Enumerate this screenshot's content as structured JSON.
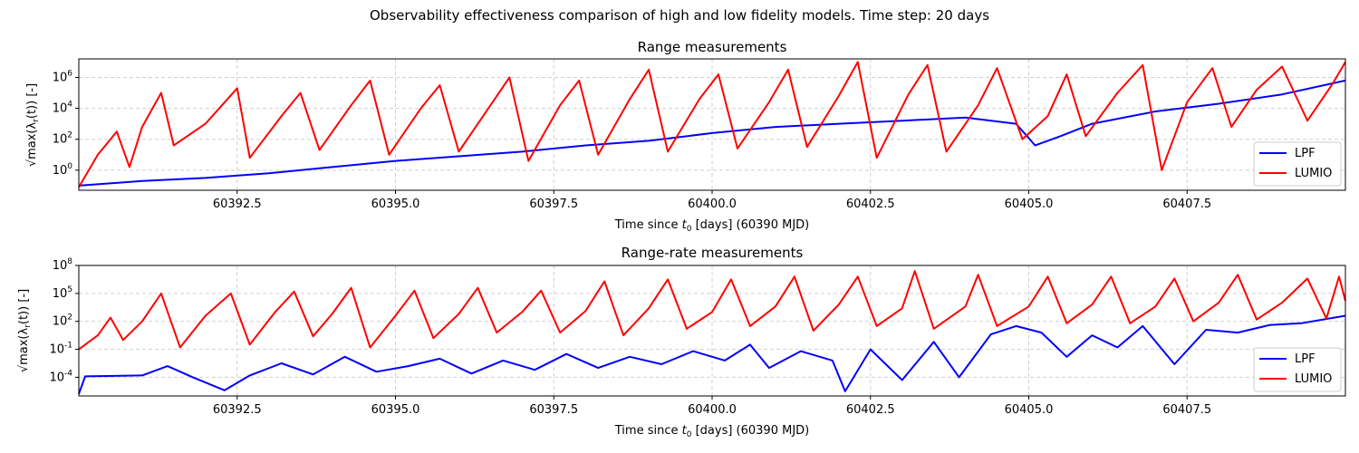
{
  "figure": {
    "suptitle": "Observability effectiveness comparison of high and low fidelity models. Time step: 20 days"
  },
  "chart_data": [
    {
      "type": "line",
      "title": "Range measurements",
      "xlabel": "Time since t0 [days] (60390 MJD)",
      "ylabel": "√max(λr(t)) [-]",
      "yscale": "log",
      "xlim": [
        60390.0,
        60410.0
      ],
      "ylim_log10": [
        -1.3,
        7.2
      ],
      "xticks": [
        60392.5,
        60395.0,
        60397.5,
        60400.0,
        60402.5,
        60405.0,
        60407.5
      ],
      "xtick_labels": [
        "60392.5",
        "60395.0",
        "60397.5",
        "60400.0",
        "60402.5",
        "60405.0",
        "60407.5"
      ],
      "yticks_log10": [
        0,
        2,
        4,
        6
      ],
      "ytick_labels": [
        "10^0",
        "10^2",
        "10^4",
        "10^6"
      ],
      "grid": true,
      "legend_position": "lower-right",
      "series": [
        {
          "name": "LPF",
          "color": "#0000ff",
          "log10_points": [
            [
              60390.0,
              -1.0
            ],
            [
              60391.0,
              -0.7
            ],
            [
              60392.0,
              -0.5
            ],
            [
              60393.0,
              -0.2
            ],
            [
              60394.0,
              0.2
            ],
            [
              60395.0,
              0.6
            ],
            [
              60396.0,
              0.9
            ],
            [
              60397.0,
              1.2
            ],
            [
              60398.0,
              1.6
            ],
            [
              60399.0,
              1.9
            ],
            [
              60400.0,
              2.4
            ],
            [
              60401.0,
              2.8
            ],
            [
              60402.0,
              3.0
            ],
            [
              60403.0,
              3.2
            ],
            [
              60404.0,
              3.4
            ],
            [
              60404.8,
              3.0
            ],
            [
              60405.1,
              1.6
            ],
            [
              60405.5,
              2.2
            ],
            [
              60406.0,
              3.0
            ],
            [
              60407.0,
              3.8
            ],
            [
              60408.0,
              4.3
            ],
            [
              60409.0,
              4.9
            ],
            [
              60410.0,
              5.8
            ]
          ]
        },
        {
          "name": "LUMIO",
          "color": "#ff0000",
          "log10_points": [
            [
              60390.0,
              -1.1
            ],
            [
              60390.3,
              1.0
            ],
            [
              60390.6,
              2.5
            ],
            [
              60390.8,
              0.2
            ],
            [
              60391.0,
              2.8
            ],
            [
              60391.3,
              5.0
            ],
            [
              60391.5,
              1.6
            ],
            [
              60392.0,
              3.0
            ],
            [
              60392.5,
              5.3
            ],
            [
              60392.7,
              0.8
            ],
            [
              60393.2,
              3.5
            ],
            [
              60393.5,
              5.0
            ],
            [
              60393.8,
              1.3
            ],
            [
              60394.3,
              4.2
            ],
            [
              60394.6,
              5.8
            ],
            [
              60394.9,
              1.0
            ],
            [
              60395.4,
              4.0
            ],
            [
              60395.7,
              5.5
            ],
            [
              60396.0,
              1.2
            ],
            [
              60396.5,
              4.2
            ],
            [
              60396.8,
              6.0
            ],
            [
              60397.1,
              0.6
            ],
            [
              60397.6,
              4.2
            ],
            [
              60397.9,
              5.8
            ],
            [
              60398.2,
              1.0
            ],
            [
              60398.7,
              4.6
            ],
            [
              60399.0,
              6.5
            ],
            [
              60399.3,
              1.2
            ],
            [
              60399.8,
              4.6
            ],
            [
              60400.1,
              6.2
            ],
            [
              60400.4,
              1.4
            ],
            [
              60400.9,
              4.4
            ],
            [
              60401.2,
              6.5
            ],
            [
              60401.5,
              1.5
            ],
            [
              60402.0,
              4.8
            ],
            [
              60402.3,
              7.0
            ],
            [
              60402.6,
              0.8
            ],
            [
              60403.1,
              4.9
            ],
            [
              60403.4,
              6.8
            ],
            [
              60403.7,
              1.2
            ],
            [
              60404.2,
              4.2
            ],
            [
              60404.5,
              6.6
            ],
            [
              60404.9,
              2.0
            ],
            [
              60405.3,
              3.5
            ],
            [
              60405.6,
              6.2
            ],
            [
              60405.9,
              2.2
            ],
            [
              60406.4,
              5.0
            ],
            [
              60406.8,
              6.8
            ],
            [
              60407.1,
              0.0
            ],
            [
              60407.5,
              4.4
            ],
            [
              60407.9,
              6.6
            ],
            [
              60408.2,
              2.8
            ],
            [
              60408.6,
              5.2
            ],
            [
              60409.0,
              6.7
            ],
            [
              60409.4,
              3.2
            ],
            [
              60409.8,
              5.6
            ],
            [
              60410.0,
              7.0
            ]
          ]
        }
      ]
    },
    {
      "type": "line",
      "title": "Range-rate measurements",
      "xlabel": "Time since t0 [days] (60390 MJD)",
      "ylabel": "√max(λr(t)) [-]",
      "yscale": "log",
      "xlim": [
        60390.0,
        60410.0
      ],
      "ylim_log10": [
        -6.0,
        8.0
      ],
      "xticks": [
        60392.5,
        60395.0,
        60397.5,
        60400.0,
        60402.5,
        60405.0,
        60407.5
      ],
      "xtick_labels": [
        "60392.5",
        "60395.0",
        "60397.5",
        "60400.0",
        "60402.5",
        "60405.0",
        "60407.5"
      ],
      "yticks_log10": [
        -4,
        -1,
        2,
        5,
        8
      ],
      "ytick_labels": [
        "10^-4",
        "10^-1",
        "10^2",
        "10^5",
        "10^8"
      ],
      "grid": true,
      "legend_position": "lower-right",
      "series": [
        {
          "name": "LPF",
          "color": "#0000ff",
          "log10_points": [
            [
              60390.0,
              -5.8
            ],
            [
              60390.1,
              -3.9
            ],
            [
              60391.0,
              -3.8
            ],
            [
              60391.4,
              -2.8
            ],
            [
              60391.8,
              -4.0
            ],
            [
              60392.3,
              -5.4
            ],
            [
              60392.7,
              -3.8
            ],
            [
              60393.2,
              -2.5
            ],
            [
              60393.7,
              -3.7
            ],
            [
              60394.2,
              -1.8
            ],
            [
              60394.7,
              -3.4
            ],
            [
              60395.2,
              -2.8
            ],
            [
              60395.7,
              -2.0
            ],
            [
              60396.2,
              -3.6
            ],
            [
              60396.7,
              -2.2
            ],
            [
              60397.2,
              -3.2
            ],
            [
              60397.7,
              -1.5
            ],
            [
              60398.2,
              -3.0
            ],
            [
              60398.7,
              -1.8
            ],
            [
              60399.2,
              -2.6
            ],
            [
              60399.7,
              -1.2
            ],
            [
              60400.2,
              -2.2
            ],
            [
              60400.6,
              -0.5
            ],
            [
              60400.9,
              -3.0
            ],
            [
              60401.4,
              -1.2
            ],
            [
              60401.9,
              -2.2
            ],
            [
              60402.1,
              -5.5
            ],
            [
              60402.5,
              -1.0
            ],
            [
              60403.0,
              -4.3
            ],
            [
              60403.5,
              -0.2
            ],
            [
              60403.9,
              -4.0
            ],
            [
              60404.4,
              0.6
            ],
            [
              60404.8,
              1.5
            ],
            [
              60405.2,
              0.8
            ],
            [
              60405.6,
              -1.8
            ],
            [
              60406.0,
              0.5
            ],
            [
              60406.4,
              -0.8
            ],
            [
              60406.8,
              1.5
            ],
            [
              60407.3,
              -2.6
            ],
            [
              60407.8,
              1.1
            ],
            [
              60408.3,
              0.8
            ],
            [
              60408.8,
              1.6
            ],
            [
              60409.3,
              1.8
            ],
            [
              60410.0,
              2.6
            ]
          ]
        },
        {
          "name": "LUMIO",
          "color": "#ff0000",
          "log10_points": [
            [
              60390.0,
              -1.0
            ],
            [
              60390.3,
              0.5
            ],
            [
              60390.5,
              2.4
            ],
            [
              60390.7,
              0.0
            ],
            [
              60391.0,
              2.0
            ],
            [
              60391.3,
              5.0
            ],
            [
              60391.6,
              -0.8
            ],
            [
              60392.0,
              2.6
            ],
            [
              60392.4,
              5.0
            ],
            [
              60392.7,
              -0.5
            ],
            [
              60393.1,
              3.0
            ],
            [
              60393.4,
              5.2
            ],
            [
              60393.7,
              0.4
            ],
            [
              60394.0,
              2.8
            ],
            [
              60394.3,
              5.6
            ],
            [
              60394.6,
              -0.8
            ],
            [
              60395.0,
              2.6
            ],
            [
              60395.3,
              5.3
            ],
            [
              60395.6,
              0.2
            ],
            [
              60396.0,
              2.8
            ],
            [
              60396.3,
              5.6
            ],
            [
              60396.6,
              0.8
            ],
            [
              60397.0,
              3.0
            ],
            [
              60397.3,
              5.3
            ],
            [
              60397.6,
              0.8
            ],
            [
              60398.0,
              3.1
            ],
            [
              60398.3,
              6.3
            ],
            [
              60398.6,
              0.5
            ],
            [
              60399.0,
              3.4
            ],
            [
              60399.3,
              6.5
            ],
            [
              60399.6,
              1.2
            ],
            [
              60400.0,
              3.0
            ],
            [
              60400.3,
              6.5
            ],
            [
              60400.6,
              1.5
            ],
            [
              60401.0,
              3.6
            ],
            [
              60401.3,
              6.8
            ],
            [
              60401.6,
              1.0
            ],
            [
              60402.0,
              3.8
            ],
            [
              60402.3,
              6.8
            ],
            [
              60402.6,
              1.5
            ],
            [
              60403.0,
              3.4
            ],
            [
              60403.2,
              7.4
            ],
            [
              60403.5,
              1.2
            ],
            [
              60404.0,
              3.6
            ],
            [
              60404.2,
              7.0
            ],
            [
              60404.5,
              1.5
            ],
            [
              60405.0,
              3.6
            ],
            [
              60405.3,
              6.8
            ],
            [
              60405.6,
              1.8
            ],
            [
              60406.0,
              3.8
            ],
            [
              60406.3,
              6.8
            ],
            [
              60406.6,
              1.8
            ],
            [
              60407.0,
              3.6
            ],
            [
              60407.3,
              6.6
            ],
            [
              60407.6,
              2.0
            ],
            [
              60408.0,
              4.0
            ],
            [
              60408.3,
              7.0
            ],
            [
              60408.6,
              2.2
            ],
            [
              60409.0,
              4.0
            ],
            [
              60409.4,
              6.6
            ],
            [
              60409.7,
              2.3
            ],
            [
              60409.9,
              6.8
            ],
            [
              60410.0,
              4.2
            ]
          ]
        }
      ]
    }
  ]
}
